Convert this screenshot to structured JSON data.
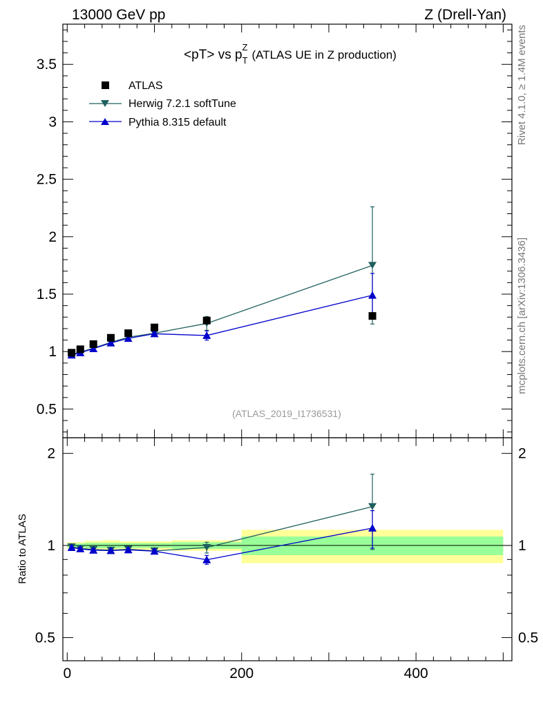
{
  "header": {
    "left": "13000 GeV pp",
    "right": "Z (Drell-Yan)",
    "side_top": "Rivet 4.1.0, ≥ 1.4M events",
    "side_bottom": "mcplots.cern.ch [arXiv:1306.3436]"
  },
  "colors": {
    "atlas": "#000000",
    "herwig": "#1f5f5f",
    "pythia": "#0000cc",
    "band_inner": "#99ff99",
    "band_outer": "#ffff99"
  },
  "chart_data": [
    {
      "type": "scatter",
      "title_main": "<pT> vs p",
      "title_sup": "Z",
      "title_sub": "T",
      "title_rest": "(ATLAS UE in Z production)",
      "watermark": "(ATLAS_2019_I1736531)",
      "xlim": [
        -5,
        510
      ],
      "ylim": [
        0.25,
        3.85
      ],
      "yticks": [
        0.5,
        1,
        1.5,
        2,
        2.5,
        3,
        3.5
      ],
      "ytick_labels": [
        "0.5",
        "1",
        "1.5",
        "2",
        "2.5",
        "3",
        "3.5"
      ],
      "legend": [
        "ATLAS",
        "Herwig 7.2.1 softTune",
        "Pythia 8.315 default"
      ],
      "legend_position": "top-left",
      "series": [
        {
          "name": "ATLAS",
          "marker": "square",
          "x": [
            5,
            15,
            30,
            50,
            70,
            100,
            160,
            350
          ],
          "y": [
            0.99,
            1.02,
            1.065,
            1.12,
            1.16,
            1.21,
            1.27,
            1.31
          ],
          "err": [
            0,
            0,
            0,
            0,
            0,
            0,
            0,
            0
          ]
        },
        {
          "name": "Herwig 7.2.1 softTune",
          "marker": "triangle-down",
          "x": [
            5,
            15,
            30,
            50,
            70,
            100,
            160,
            350
          ],
          "y": [
            0.975,
            0.995,
            1.03,
            1.08,
            1.125,
            1.16,
            1.245,
            1.75
          ],
          "err": [
            0.01,
            0.01,
            0.012,
            0.015,
            0.018,
            0.02,
            0.06,
            0.51
          ]
        },
        {
          "name": "Pythia 8.315 default",
          "marker": "triangle-up",
          "x": [
            5,
            15,
            30,
            50,
            70,
            100,
            160,
            350
          ],
          "y": [
            0.97,
            0.99,
            1.025,
            1.075,
            1.115,
            1.155,
            1.14,
            1.49
          ],
          "err": [
            0.01,
            0.01,
            0.012,
            0.015,
            0.018,
            0.02,
            0.04,
            0.19
          ]
        }
      ]
    },
    {
      "type": "scatter",
      "ylabel": "Ratio to ATLAS",
      "scale": "log",
      "xlim": [
        -5,
        510
      ],
      "ylim": [
        0.42,
        2.25
      ],
      "xticks": [
        0,
        200,
        400
      ],
      "xtick_labels": [
        "0",
        "200",
        "400"
      ],
      "yticks": [
        0.5,
        1,
        2
      ],
      "ytick_labels": [
        "0.5",
        "1",
        "2"
      ],
      "bands": [
        {
          "x_low": 0,
          "x_high": 10,
          "inner": [
            0.985,
            1.015
          ],
          "outer": [
            0.975,
            1.025
          ]
        },
        {
          "x_low": 10,
          "x_high": 20,
          "inner": [
            0.985,
            1.015
          ],
          "outer": [
            0.975,
            1.025
          ]
        },
        {
          "x_low": 20,
          "x_high": 40,
          "inner": [
            0.98,
            1.02
          ],
          "outer": [
            0.965,
            1.035
          ]
        },
        {
          "x_low": 40,
          "x_high": 60,
          "inner": [
            0.98,
            1.02
          ],
          "outer": [
            0.965,
            1.04
          ]
        },
        {
          "x_low": 60,
          "x_high": 80,
          "inner": [
            0.982,
            1.018
          ],
          "outer": [
            0.968,
            1.032
          ]
        },
        {
          "x_low": 80,
          "x_high": 120,
          "inner": [
            0.982,
            1.018
          ],
          "outer": [
            0.968,
            1.032
          ]
        },
        {
          "x_low": 120,
          "x_high": 200,
          "inner": [
            0.975,
            1.025
          ],
          "outer": [
            0.96,
            1.04
          ]
        },
        {
          "x_low": 200,
          "x_high": 500,
          "inner": [
            0.93,
            1.07
          ],
          "outer": [
            0.875,
            1.125
          ]
        }
      ],
      "series": [
        {
          "name": "Herwig 7.2.1 softTune",
          "marker": "triangle-down",
          "x": [
            5,
            15,
            30,
            50,
            70,
            100,
            160,
            350
          ],
          "y": [
            0.99,
            0.978,
            0.97,
            0.965,
            0.972,
            0.96,
            0.985,
            1.34
          ],
          "err": [
            0.01,
            0.01,
            0.012,
            0.012,
            0.014,
            0.014,
            0.04,
            0.37
          ]
        },
        {
          "name": "Pythia 8.315 default",
          "marker": "triangle-up",
          "x": [
            5,
            15,
            30,
            50,
            70,
            100,
            160,
            350
          ],
          "y": [
            0.985,
            0.975,
            0.965,
            0.962,
            0.968,
            0.958,
            0.898,
            1.14
          ],
          "err": [
            0.01,
            0.01,
            0.012,
            0.012,
            0.014,
            0.014,
            0.03,
            0.16
          ]
        }
      ]
    }
  ]
}
